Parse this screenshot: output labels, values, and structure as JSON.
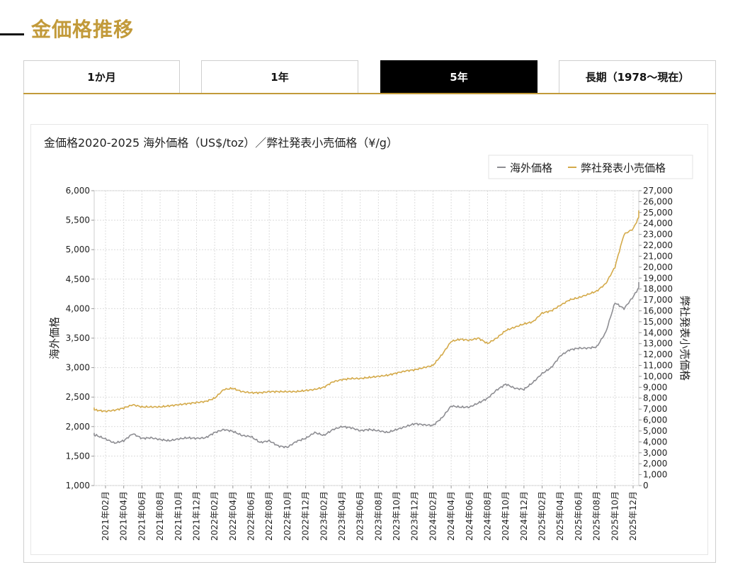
{
  "page": {
    "title": "金価格推移"
  },
  "tabs": [
    {
      "label": "1か月",
      "active": false
    },
    {
      "label": "1年",
      "active": false
    },
    {
      "label": "5年",
      "active": true
    },
    {
      "label": "長期（1978〜現在）",
      "active": false
    }
  ],
  "colors": {
    "accent": "#c29a3a",
    "overseas": "#8e8e93",
    "retail": "#d4aa4a"
  },
  "chart_data": {
    "type": "line",
    "title": "金価格2020-2025 海外価格（US$/toz）／弊社発表小売価格（¥/g）",
    "legend": {
      "position": "top-right",
      "items": [
        "海外価格",
        "弊社発表小売価格"
      ]
    },
    "ylabel": "海外価格",
    "y2label": "弊社発表小売価格",
    "ylim": [
      1000,
      6000
    ],
    "y2lim": [
      0,
      27000
    ],
    "yticks": [
      "1,000",
      "1,500",
      "2,000",
      "2,500",
      "3,000",
      "3,500",
      "4,000",
      "4,500",
      "5,000",
      "5,500",
      "6,000"
    ],
    "y2ticks": [
      "0",
      "1,000",
      "2,000",
      "3,000",
      "4,000",
      "5,000",
      "6,000",
      "7,000",
      "8,000",
      "9,000",
      "10,000",
      "11,000",
      "12,000",
      "13,000",
      "14,000",
      "15,000",
      "16,000",
      "17,000",
      "18,000",
      "19,000",
      "20,000",
      "21,000",
      "22,000",
      "23,000",
      "24,000",
      "25,000",
      "26,000",
      "27,000"
    ],
    "xticks": [
      "2021年02月",
      "2021年04月",
      "2021年06月",
      "2021年08月",
      "2021年10月",
      "2021年12月",
      "2022年02月",
      "2022年04月",
      "2022年06月",
      "2022年08月",
      "2022年10月",
      "2022年12月",
      "2023年02月",
      "2023年04月",
      "2023年06月",
      "2023年08月",
      "2023年10月",
      "2023年12月",
      "2024年02月",
      "2024年04月",
      "2024年06月",
      "2024年08月",
      "2024年10月",
      "2024年12月",
      "2025年02月",
      "2025年04月",
      "2025年06月",
      "2025年08月",
      "2025年10月",
      "2025年12月"
    ],
    "grid": true,
    "series": [
      {
        "name": "海外価格",
        "axis": "left",
        "x": [
          "2020-12",
          "2021-01",
          "2021-02",
          "2021-03",
          "2021-04",
          "2021-05",
          "2021-06",
          "2021-07",
          "2021-08",
          "2021-09",
          "2021-10",
          "2021-11",
          "2021-12",
          "2022-01",
          "2022-02",
          "2022-03",
          "2022-04",
          "2022-05",
          "2022-06",
          "2022-07",
          "2022-08",
          "2022-09",
          "2022-10",
          "2022-11",
          "2022-12",
          "2023-01",
          "2023-02",
          "2023-03",
          "2023-04",
          "2023-05",
          "2023-06",
          "2023-07",
          "2023-08",
          "2023-09",
          "2023-10",
          "2023-11",
          "2023-12",
          "2024-01",
          "2024-02",
          "2024-03",
          "2024-04",
          "2024-05",
          "2024-06",
          "2024-07",
          "2024-08",
          "2024-09",
          "2024-10",
          "2024-11",
          "2024-12",
          "2025-01",
          "2025-02",
          "2025-03",
          "2025-04",
          "2025-05",
          "2025-06",
          "2025-07",
          "2025-08",
          "2025-09",
          "2025-10",
          "2025-11",
          "2025-12",
          "2026-01"
        ],
        "values": [
          1880,
          1850,
          1790,
          1720,
          1760,
          1880,
          1800,
          1810,
          1780,
          1760,
          1790,
          1810,
          1800,
          1810,
          1900,
          1950,
          1920,
          1850,
          1830,
          1730,
          1760,
          1670,
          1650,
          1750,
          1800,
          1900,
          1850,
          1950,
          2000,
          1980,
          1930,
          1950,
          1930,
          1900,
          1950,
          2000,
          2050,
          2030,
          2020,
          2150,
          2350,
          2330,
          2330,
          2400,
          2480,
          2620,
          2720,
          2650,
          2630,
          2750,
          2900,
          3000,
          3200,
          3300,
          3330,
          3330,
          3350,
          3600,
          4100,
          4000,
          4200,
          4450
        ]
      },
      {
        "name": "弊社発表小売価格",
        "axis": "right",
        "x": [
          "2020-12",
          "2021-01",
          "2021-02",
          "2021-03",
          "2021-04",
          "2021-05",
          "2021-06",
          "2021-07",
          "2021-08",
          "2021-09",
          "2021-10",
          "2021-11",
          "2021-12",
          "2022-01",
          "2022-02",
          "2022-03",
          "2022-04",
          "2022-05",
          "2022-06",
          "2022-07",
          "2022-08",
          "2022-09",
          "2022-10",
          "2022-11",
          "2022-12",
          "2023-01",
          "2023-02",
          "2023-03",
          "2023-04",
          "2023-05",
          "2023-06",
          "2023-07",
          "2023-08",
          "2023-09",
          "2023-10",
          "2023-11",
          "2023-12",
          "2024-01",
          "2024-02",
          "2024-03",
          "2024-04",
          "2024-05",
          "2024-06",
          "2024-07",
          "2024-08",
          "2024-09",
          "2024-10",
          "2024-11",
          "2024-12",
          "2025-01",
          "2025-02",
          "2025-03",
          "2025-04",
          "2025-05",
          "2025-06",
          "2025-07",
          "2025-08",
          "2025-09",
          "2025-10",
          "2025-11",
          "2025-12",
          "2026-01"
        ],
        "values": [
          7100,
          6900,
          6800,
          6900,
          7100,
          7400,
          7200,
          7200,
          7200,
          7300,
          7400,
          7500,
          7600,
          7700,
          8000,
          8800,
          8900,
          8600,
          8500,
          8500,
          8600,
          8600,
          8600,
          8600,
          8700,
          8800,
          9000,
          9500,
          9700,
          9800,
          9800,
          9900,
          10000,
          10100,
          10300,
          10500,
          10600,
          10800,
          11000,
          12000,
          13200,
          13400,
          13300,
          13500,
          13000,
          13500,
          14200,
          14500,
          14800,
          15000,
          15800,
          16000,
          16500,
          17000,
          17200,
          17500,
          17800,
          18500,
          20000,
          23000,
          23500,
          25200
        ]
      }
    ]
  }
}
